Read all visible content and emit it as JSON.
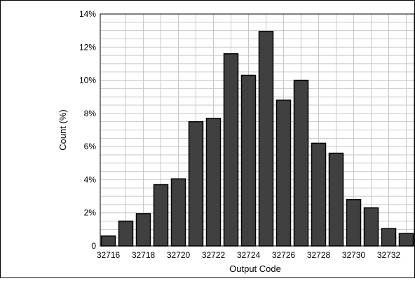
{
  "chart_data": {
    "type": "bar",
    "categories": [
      32716,
      32717,
      32718,
      32719,
      32720,
      32721,
      32722,
      32723,
      32724,
      32725,
      32726,
      32727,
      32728,
      32729,
      32730,
      32731,
      32732,
      32733
    ],
    "values": [
      0.6,
      1.5,
      1.95,
      3.7,
      4.05,
      7.5,
      7.7,
      11.6,
      10.3,
      12.95,
      8.8,
      10.0,
      6.2,
      5.6,
      2.8,
      2.3,
      1.05,
      0.75
    ],
    "xlabel": "Output Code",
    "ylabel": "Count (%)",
    "ylim": [
      0,
      14
    ],
    "yticks": [
      0,
      2,
      4,
      6,
      8,
      10,
      12,
      14
    ],
    "ytick_labels": [
      "0",
      "2%",
      "4%",
      "6%",
      "8%",
      "10%",
      "12%",
      "14%"
    ],
    "xtick_labels": [
      "32716",
      "32718",
      "32720",
      "32722",
      "32724",
      "32726",
      "32728",
      "32730",
      "32732"
    ],
    "grid": true,
    "bar_color": "#404040",
    "bar_edge_color": "#000000",
    "grid_color": "#c8c8c8"
  }
}
